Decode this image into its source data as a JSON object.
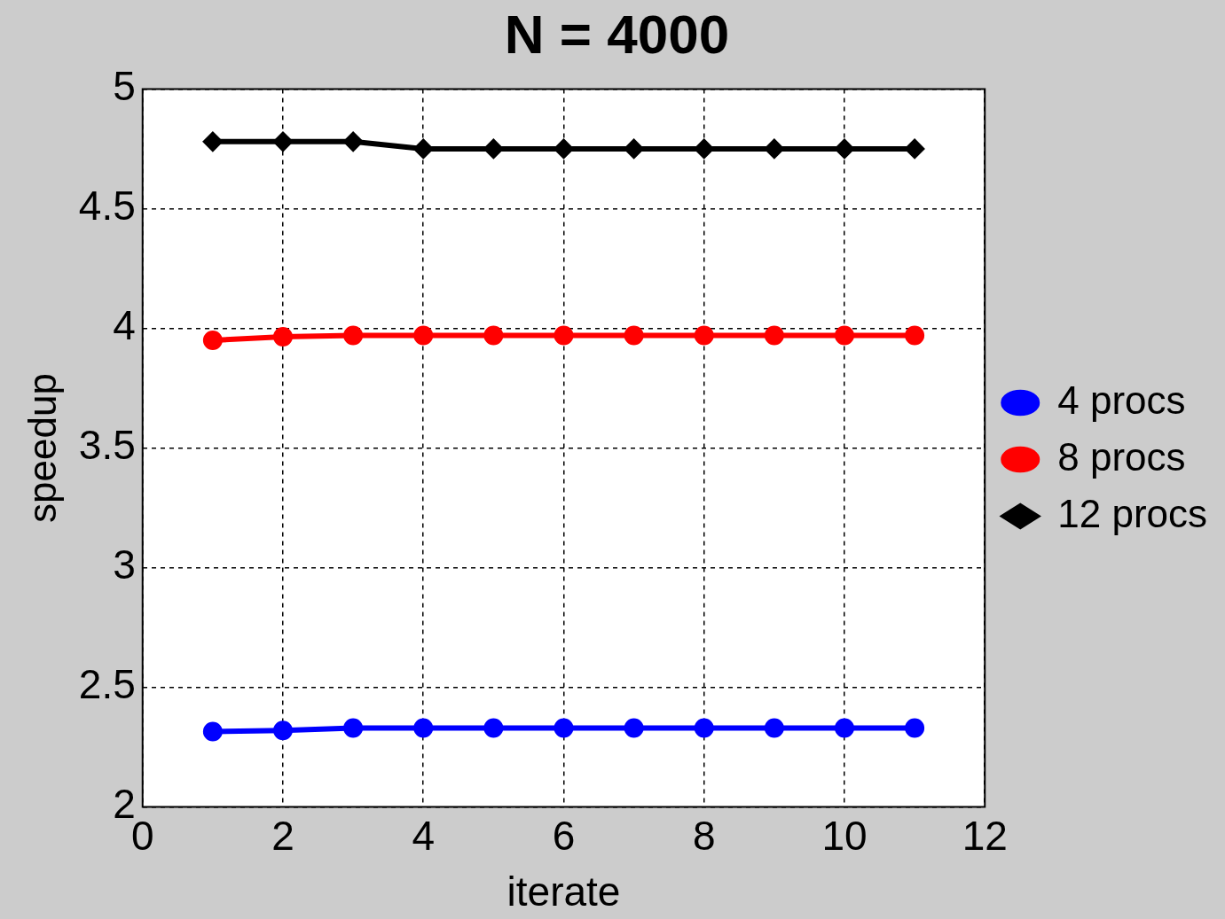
{
  "chart_data": {
    "type": "line",
    "title": "N = 4000",
    "xlabel": "iterate",
    "ylabel": "speedup",
    "x": [
      1,
      2,
      3,
      4,
      5,
      6,
      7,
      8,
      9,
      10,
      11
    ],
    "xlim": [
      0,
      12
    ],
    "xticks": [
      0,
      2,
      4,
      6,
      8,
      10,
      12
    ],
    "ylim": [
      2,
      5
    ],
    "yticks": [
      2,
      2.5,
      3,
      3.5,
      4,
      4.5,
      5
    ],
    "grid": true,
    "legend": "right",
    "line_style": "solid",
    "series": [
      {
        "name": "4 procs",
        "color": "#0000ff",
        "marker": "circle",
        "values": [
          2.315,
          2.32,
          2.33,
          2.33,
          2.33,
          2.33,
          2.33,
          2.33,
          2.33,
          2.33,
          2.33
        ]
      },
      {
        "name": "8 procs",
        "color": "#ff0000",
        "marker": "circle",
        "values": [
          3.95,
          3.965,
          3.97,
          3.97,
          3.97,
          3.97,
          3.97,
          3.97,
          3.97,
          3.97,
          3.97
        ]
      },
      {
        "name": "12 procs",
        "color": "#000000",
        "marker": "diamond",
        "values": [
          4.78,
          4.78,
          4.78,
          4.75,
          4.75,
          4.75,
          4.75,
          4.75,
          4.75,
          4.75,
          4.75
        ]
      }
    ]
  }
}
